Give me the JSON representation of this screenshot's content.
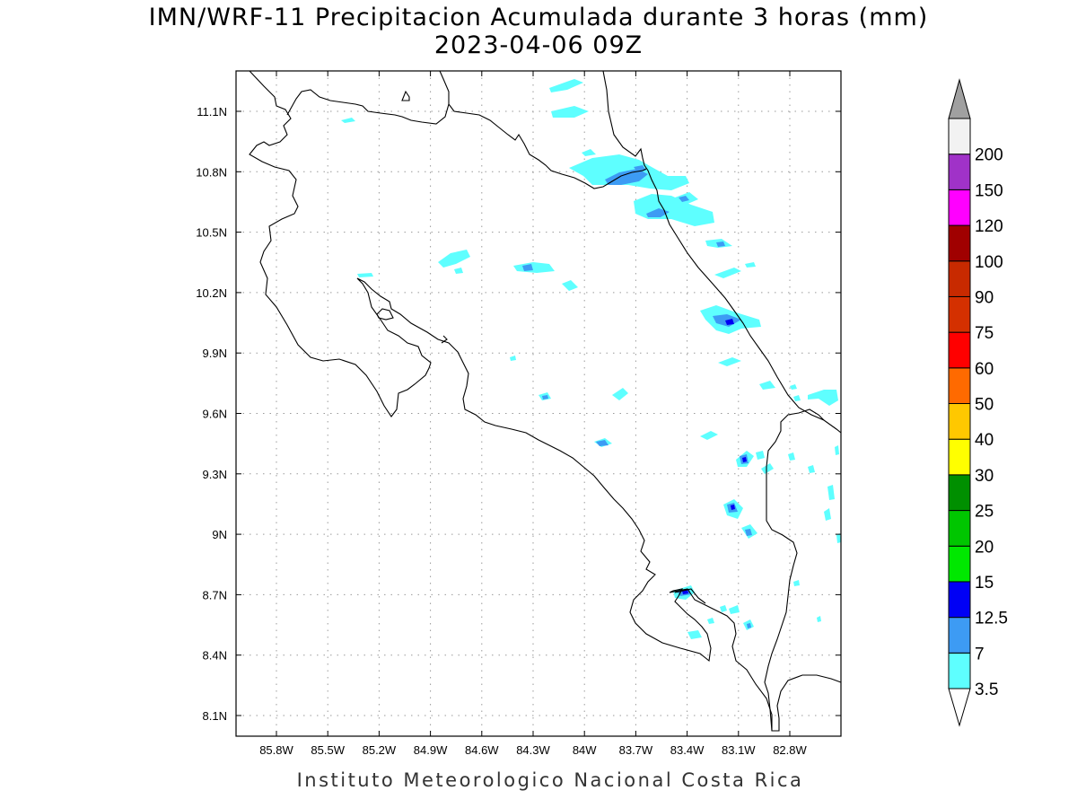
{
  "title_line1": "IMN/WRF-11 Precipitacion Acumulada durante 3 horas (mm)",
  "title_line2": "2023-04-06 09Z",
  "footer": "Instituto Meteorologico Nacional Costa Rica",
  "map": {
    "lon_ticks": [
      "85.8W",
      "85.5W",
      "85.2W",
      "84.9W",
      "84.6W",
      "84.3W",
      "84W",
      "83.7W",
      "83.4W",
      "83.1W",
      "82.8W"
    ],
    "lat_ticks": [
      "11.1N",
      "10.8N",
      "10.5N",
      "10.2N",
      "9.9N",
      "9.6N",
      "9.3N",
      "9N",
      "8.7N",
      "8.4N",
      "8.1N"
    ]
  },
  "legend": {
    "levels": [
      {
        "label": "3.5",
        "color": "#5effff"
      },
      {
        "label": "7",
        "color": "#3d9bf4"
      },
      {
        "label": "12.5",
        "color": "#0000f5"
      },
      {
        "label": "15",
        "color": "#00e800"
      },
      {
        "label": "20",
        "color": "#00c600"
      },
      {
        "label": "25",
        "color": "#008f00"
      },
      {
        "label": "30",
        "color": "#ffff00"
      },
      {
        "label": "40",
        "color": "#ffc800"
      },
      {
        "label": "50",
        "color": "#ff6a00"
      },
      {
        "label": "60",
        "color": "#ff0000"
      },
      {
        "label": "75",
        "color": "#d43000"
      },
      {
        "label": "90",
        "color": "#c82a00"
      },
      {
        "label": "100",
        "color": "#a00000"
      },
      {
        "label": "120",
        "color": "#ff00ff"
      },
      {
        "label": "150",
        "color": "#a032c8"
      },
      {
        "label": "200",
        "color": "#f2f2f2"
      }
    ],
    "top_arrow_color": "#a0a0a0",
    "bottom_arrow_color": "#ffffff"
  }
}
